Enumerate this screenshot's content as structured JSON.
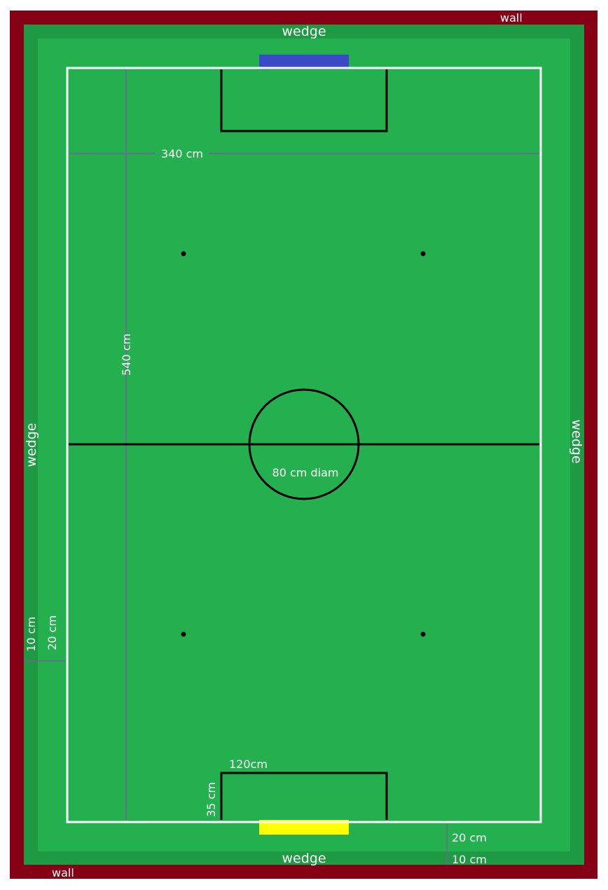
{
  "colors": {
    "wall": "#850015",
    "wedge": "#1e9944",
    "field": "#24b04e",
    "boundary": "#ffffff",
    "markings": "#000000",
    "dimension_line": "#7a5f99",
    "goal_top": "#3a4ac7",
    "goal_bottom": "#ffff00",
    "label": "#ffffff"
  },
  "labels": {
    "wall_top": "wall",
    "wall_bottom": "wall",
    "wedge_top": "wedge",
    "wedge_bottom": "wedge",
    "wedge_left": "wedge",
    "wedge_right": "wedge",
    "field_width": "340 cm",
    "field_length": "540 cm",
    "circle_diameter": "80 cm diam",
    "penalty_width": "120cm",
    "penalty_depth": "35 cm",
    "left_wall_gap": "10 cm",
    "left_wedge_gap": "20 cm",
    "bottom_wedge_gap": "20 cm",
    "bottom_wall_gap": "10 cm"
  },
  "field": {
    "length_cm": 540,
    "width_cm": 340,
    "center_circle_diameter_cm": 80,
    "penalty_area_width_cm": 120,
    "penalty_area_depth_cm": 35,
    "wedge_width_cm": 20,
    "wall_gap_cm": 10,
    "neutral_spots": 4
  }
}
